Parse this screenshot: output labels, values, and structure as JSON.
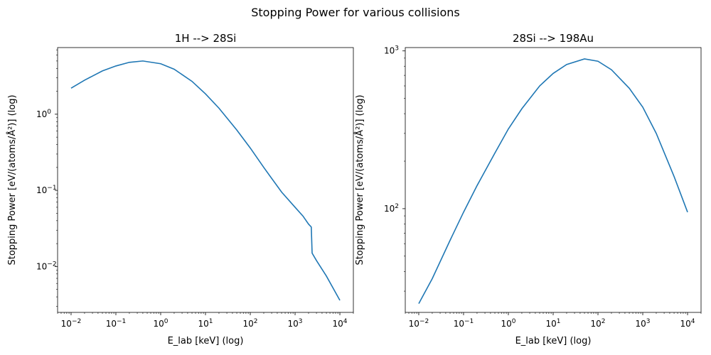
{
  "figure": {
    "suptitle": "Stopping Power for various collisions"
  },
  "chart_data": [
    {
      "type": "line",
      "title": "1H --> 28Si",
      "xlabel": "E_lab [keV] (log)",
      "ylabel": "Stopping Power [eV/(atoms/Å²)] (log)",
      "xscale": "log",
      "yscale": "log",
      "xlim": [
        0.005,
        20000
      ],
      "ylim": [
        0.0025,
        7.5
      ],
      "xticks": [
        {
          "value": 0.01,
          "exp": "−2"
        },
        {
          "value": 0.1,
          "exp": "−1"
        },
        {
          "value": 1,
          "exp": "0"
        },
        {
          "value": 10,
          "exp": "1"
        },
        {
          "value": 100,
          "exp": "2"
        },
        {
          "value": 1000,
          "exp": "3"
        },
        {
          "value": 10000,
          "exp": "4"
        }
      ],
      "yticks": [
        {
          "value": 0.01,
          "exp": "−2"
        },
        {
          "value": 0.1,
          "exp": "−1"
        },
        {
          "value": 1,
          "exp": "0"
        }
      ],
      "line_color": "#1f77b4",
      "series": [
        {
          "x": [
            0.01,
            0.02,
            0.05,
            0.1,
            0.2,
            0.4,
            1,
            2,
            5,
            10,
            20,
            50,
            100,
            200,
            500,
            1000,
            1500,
            2000,
            2200,
            2300,
            2400,
            3000,
            5000,
            10000
          ],
          "y": [
            2.2,
            2.8,
            3.7,
            4.3,
            4.8,
            5.0,
            4.6,
            3.9,
            2.7,
            1.85,
            1.2,
            0.62,
            0.36,
            0.2,
            0.095,
            0.06,
            0.046,
            0.036,
            0.034,
            0.033,
            0.015,
            0.012,
            0.0075,
            0.0036
          ]
        }
      ]
    },
    {
      "type": "line",
      "title": "28Si --> 198Au",
      "xlabel": "E_lab [keV] (log)",
      "ylabel": "Stopping Power [eV/(atoms/Å²)] (log)",
      "xscale": "log",
      "yscale": "log",
      "xlim": [
        0.005,
        20000
      ],
      "ylim": [
        22,
        1050
      ],
      "xticks": [
        {
          "value": 0.01,
          "exp": "−2"
        },
        {
          "value": 0.1,
          "exp": "−1"
        },
        {
          "value": 1,
          "exp": "0"
        },
        {
          "value": 10,
          "exp": "1"
        },
        {
          "value": 100,
          "exp": "2"
        },
        {
          "value": 1000,
          "exp": "3"
        },
        {
          "value": 10000,
          "exp": "4"
        }
      ],
      "yticks": [
        {
          "value": 100,
          "exp": "2"
        },
        {
          "value": 1000,
          "exp": "3"
        }
      ],
      "line_color": "#1f77b4",
      "series": [
        {
          "x": [
            0.01,
            0.02,
            0.05,
            0.1,
            0.2,
            0.5,
            1,
            2,
            5,
            10,
            20,
            50,
            100,
            200,
            500,
            1000,
            2000,
            5000,
            10000
          ],
          "y": [
            25,
            36,
            63,
            95,
            140,
            225,
            320,
            430,
            600,
            720,
            820,
            890,
            860,
            760,
            580,
            440,
            300,
            160,
            95
          ]
        }
      ]
    }
  ]
}
